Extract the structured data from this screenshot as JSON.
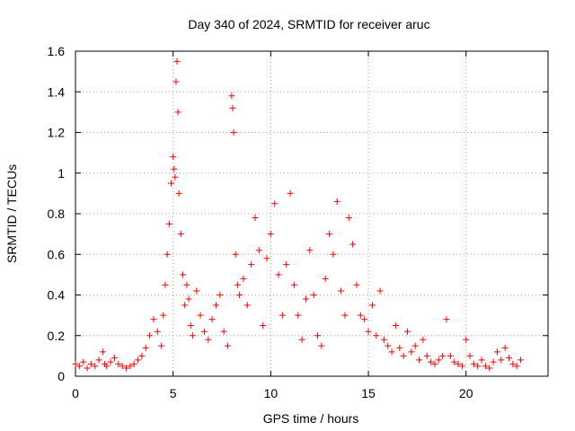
{
  "chart_data": {
    "type": "scatter",
    "title": "Day 340 of 2024, SRMTID for receiver aruc",
    "xlabel": "GPS time / hours",
    "ylabel": "SRMTID / TECUs",
    "xlim": [
      0,
      24.2
    ],
    "ylim": [
      0,
      1.6
    ],
    "x_ticks": [
      0,
      5,
      10,
      15,
      20
    ],
    "x_tick_labels": [
      "0",
      "5",
      "10",
      "15",
      "20"
    ],
    "y_ticks": [
      0,
      0.2,
      0.4,
      0.6,
      0.8,
      1,
      1.2,
      1.4,
      1.6
    ],
    "y_tick_labels": [
      "0",
      "0.2",
      "0.4",
      "0.6",
      "0.8",
      "1",
      "1.2",
      "1.4",
      "1.6"
    ],
    "grid": true,
    "marker": "plus",
    "series": [
      {
        "name": "SRMTID",
        "color": "#ff0000",
        "x": [
          0.0,
          0.2,
          0.4,
          0.6,
          0.8,
          1.0,
          1.2,
          1.4,
          1.5,
          1.6,
          1.8,
          2.0,
          2.2,
          2.4,
          2.6,
          2.8,
          3.0,
          3.2,
          3.4,
          3.6,
          3.8,
          4.0,
          4.2,
          4.4,
          4.5,
          4.6,
          4.7,
          4.8,
          4.9,
          5.0,
          5.05,
          5.1,
          5.15,
          5.2,
          5.25,
          5.3,
          5.4,
          5.5,
          5.6,
          5.7,
          5.8,
          5.9,
          6.0,
          6.2,
          6.4,
          6.6,
          6.8,
          7.0,
          7.2,
          7.4,
          7.6,
          7.8,
          8.0,
          8.05,
          8.1,
          8.2,
          8.3,
          8.4,
          8.6,
          8.8,
          9.0,
          9.2,
          9.4,
          9.6,
          9.8,
          10.0,
          10.2,
          10.4,
          10.6,
          10.8,
          11.0,
          11.2,
          11.4,
          11.6,
          11.8,
          12.0,
          12.2,
          12.4,
          12.6,
          12.8,
          13.0,
          13.2,
          13.4,
          13.6,
          13.8,
          14.0,
          14.2,
          14.4,
          14.6,
          14.8,
          15.0,
          15.2,
          15.4,
          15.6,
          15.8,
          16.0,
          16.2,
          16.4,
          16.6,
          16.8,
          17.0,
          17.2,
          17.4,
          17.6,
          17.8,
          18.0,
          18.2,
          18.4,
          18.6,
          18.8,
          19.0,
          19.2,
          19.4,
          19.6,
          19.8,
          20.0,
          20.2,
          20.4,
          20.6,
          20.8,
          21.0,
          21.2,
          21.4,
          21.6,
          21.8,
          22.0,
          22.2,
          22.4,
          22.6,
          22.8
        ],
        "y": [
          0.06,
          0.05,
          0.07,
          0.04,
          0.06,
          0.05,
          0.08,
          0.12,
          0.06,
          0.05,
          0.07,
          0.09,
          0.06,
          0.05,
          0.04,
          0.05,
          0.06,
          0.08,
          0.1,
          0.14,
          0.2,
          0.28,
          0.22,
          0.15,
          0.3,
          0.45,
          0.6,
          0.75,
          0.95,
          1.08,
          1.02,
          0.98,
          1.45,
          1.55,
          1.3,
          0.9,
          0.7,
          0.5,
          0.35,
          0.45,
          0.38,
          0.25,
          0.2,
          0.42,
          0.3,
          0.22,
          0.18,
          0.28,
          0.35,
          0.4,
          0.22,
          0.15,
          1.38,
          1.32,
          1.2,
          0.6,
          0.45,
          0.4,
          0.48,
          0.35,
          0.55,
          0.78,
          0.62,
          0.25,
          0.58,
          0.7,
          0.85,
          0.5,
          0.3,
          0.55,
          0.9,
          0.45,
          0.3,
          0.18,
          0.38,
          0.62,
          0.4,
          0.2,
          0.15,
          0.48,
          0.7,
          0.6,
          0.86,
          0.42,
          0.3,
          0.78,
          0.65,
          0.45,
          0.3,
          0.28,
          0.22,
          0.35,
          0.2,
          0.42,
          0.18,
          0.15,
          0.12,
          0.25,
          0.14,
          0.1,
          0.22,
          0.12,
          0.15,
          0.08,
          0.18,
          0.1,
          0.07,
          0.06,
          0.08,
          0.1,
          0.28,
          0.1,
          0.07,
          0.06,
          0.05,
          0.18,
          0.1,
          0.06,
          0.05,
          0.08,
          0.05,
          0.04,
          0.07,
          0.12,
          0.08,
          0.14,
          0.09,
          0.06,
          0.05,
          0.08
        ]
      }
    ]
  }
}
